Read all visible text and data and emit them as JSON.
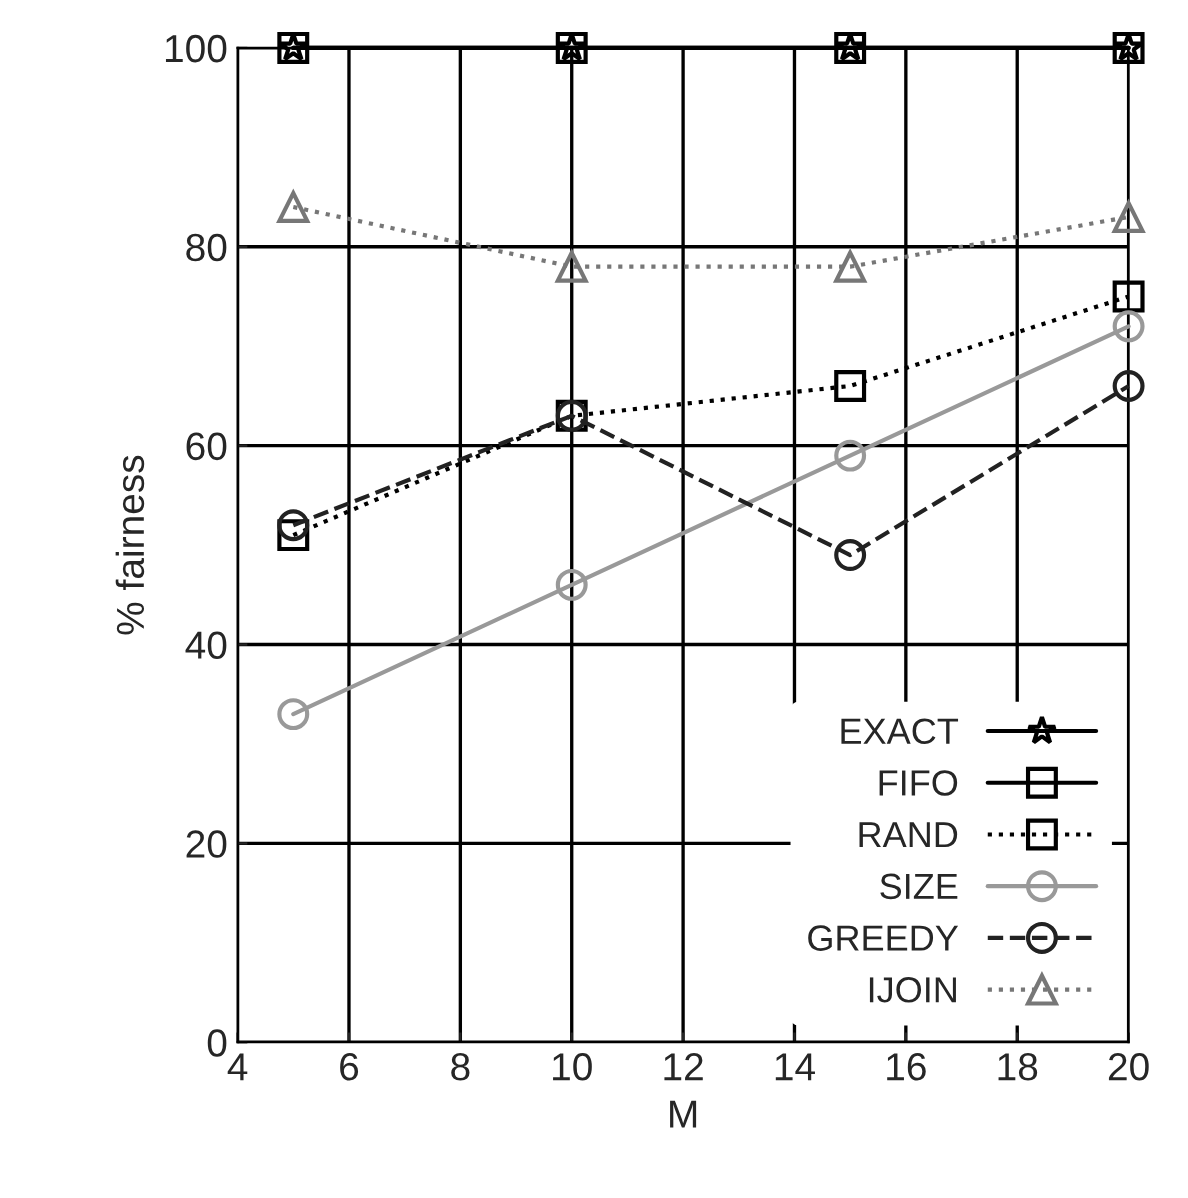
{
  "chart_data": {
    "type": "line",
    "xlabel": "M",
    "ylabel": "% fairness",
    "x": [
      5,
      10,
      15,
      20
    ],
    "series": [
      {
        "name": "EXACT",
        "color": "#000000",
        "values": [
          100,
          100,
          100,
          100
        ],
        "marker": "star",
        "line_style": "solid"
      },
      {
        "name": "FIFO",
        "color": "#000000",
        "values": [
          100,
          100,
          100,
          100
        ],
        "marker": "square",
        "line_style": "solid"
      },
      {
        "name": "RAND",
        "color": "#000000",
        "values": [
          51,
          63,
          66,
          75
        ],
        "marker": "square",
        "line_style": "dotted"
      },
      {
        "name": "SIZE",
        "color": "#999999",
        "values": [
          33,
          46,
          59,
          72
        ],
        "marker": "circle",
        "line_style": "solid"
      },
      {
        "name": "GREEDY",
        "color": "#222222",
        "values": [
          52,
          63,
          49,
          66
        ],
        "marker": "circle",
        "line_style": "dashed"
      },
      {
        "name": "IJOIN",
        "color": "#777777",
        "values": [
          84,
          78,
          78,
          83
        ],
        "marker": "triangle",
        "line_style": "dotted"
      }
    ],
    "xlim": [
      4,
      20
    ],
    "xticks": [
      4,
      6,
      8,
      10,
      12,
      14,
      16,
      18,
      20
    ],
    "ylim": [
      0,
      100
    ],
    "yticks": [
      0,
      20,
      40,
      60,
      80,
      100
    ],
    "grid": true,
    "legend": "bottom right"
  }
}
